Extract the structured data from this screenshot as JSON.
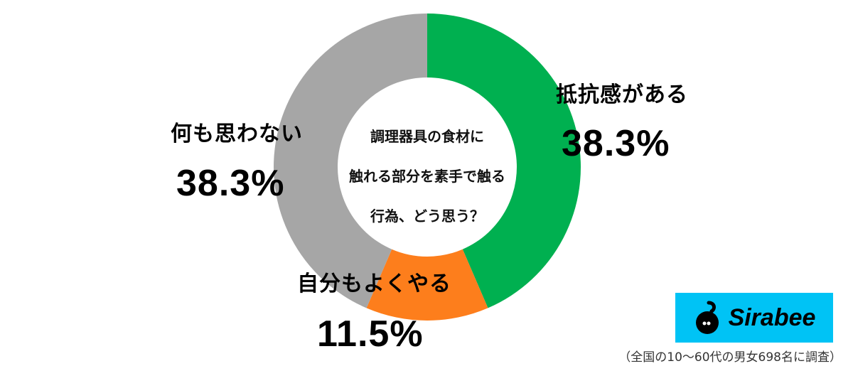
{
  "chart_data": {
    "type": "pie",
    "subtype": "donut",
    "title": "調理器具の食材に触れる部分を素手で触る行為、どう思う？",
    "title_lines": [
      "調理器具の食材に",
      "触れる部分を素手で触る",
      "行為、どう思う？"
    ],
    "categories": [
      "抵抗感がある",
      "自分もよくやる",
      "何も思わない"
    ],
    "values": [
      38.3,
      11.5,
      38.3
    ],
    "value_labels": [
      "38.3%",
      "11.5%",
      "38.3%"
    ],
    "colors": [
      "#00b050",
      "#fd7e1c",
      "#a6a6a6"
    ],
    "drawn_angles_deg": [
      [
        0,
        156.7
      ],
      [
        156.7,
        203.3
      ],
      [
        203.3,
        360
      ]
    ],
    "legend": "none (labels placed beside segments)"
  },
  "labels": {
    "right": {
      "name": "抵抗感がある",
      "pct": "38.3%"
    },
    "bottom": {
      "name": "自分もよくやる",
      "pct": "11.5%"
    },
    "left": {
      "name": "何も思わない",
      "pct": "38.3%"
    }
  },
  "logo": {
    "text": "Sirabee",
    "bg_color": "#00c3f5"
  },
  "footnote": "（全国の10〜60代の男女698名に調査）"
}
